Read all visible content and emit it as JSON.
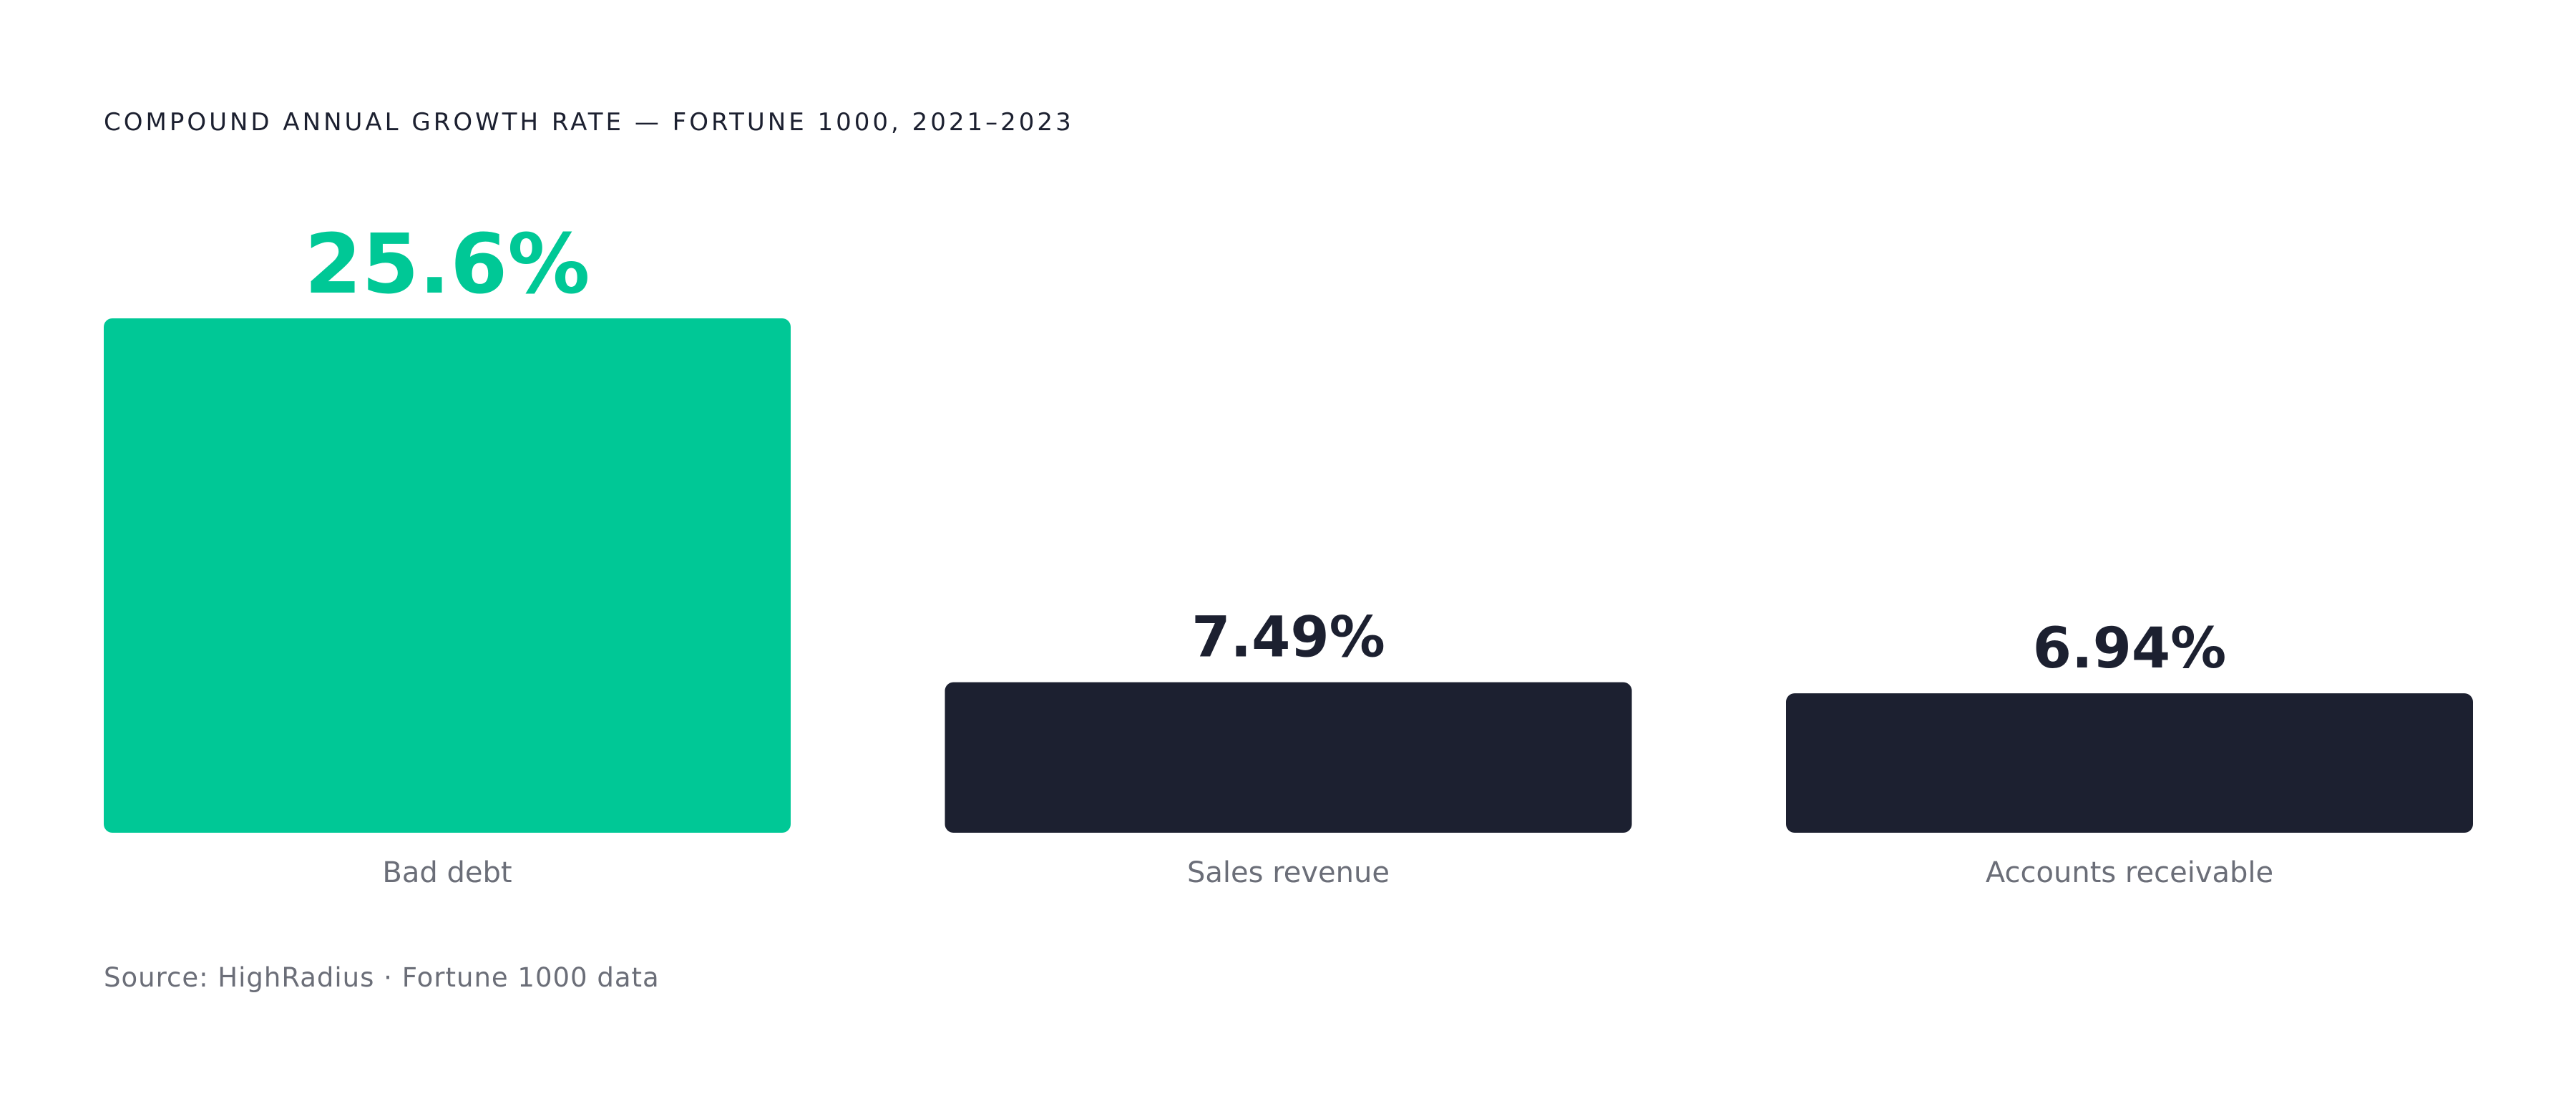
{
  "chart_data": {
    "type": "bar",
    "title": "COMPOUND ANNUAL GROWTH RATE — FORTUNE 1000, 2021–2023",
    "categories": [
      "Bad debt",
      "Sales revenue",
      "Accounts receivable"
    ],
    "values": [
      25.6,
      7.49,
      6.94
    ],
    "value_labels": [
      "25.6%",
      "7.49%",
      "6.94%"
    ],
    "colors": [
      "#00c896",
      "#1c2030",
      "#1c2030"
    ],
    "source": "Source: HighRadius · Fortune 1000 data"
  }
}
